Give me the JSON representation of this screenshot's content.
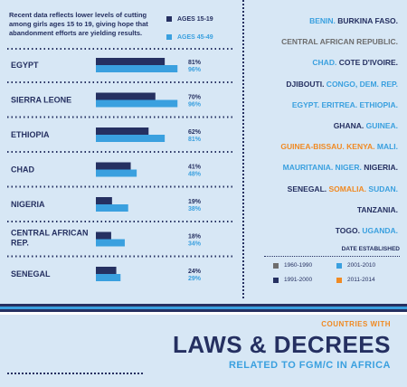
{
  "intro_text": "Recent data reflects lower levels of cutting among girls ages 15 to 19, giving hope that abandonment efforts are yielding results.",
  "age_legend": [
    {
      "label": "AGES 15-19",
      "color": "#253061"
    },
    {
      "label": "AGES 45-49",
      "color": "#3aa0df"
    }
  ],
  "chart_data": {
    "type": "bar",
    "orientation": "horizontal",
    "categories": [
      "EGYPT",
      "SIERRA LEONE",
      "ETHIOPIA",
      "CHAD",
      "NIGERIA",
      "CENTRAL AFRICAN REP.",
      "SENEGAL"
    ],
    "series": [
      {
        "name": "AGES 15-19",
        "color": "#253061",
        "values": [
          81,
          70,
          62,
          41,
          19,
          18,
          24
        ]
      },
      {
        "name": "AGES 45-49",
        "color": "#3aa0df",
        "values": [
          96,
          96,
          81,
          48,
          38,
          34,
          29
        ]
      }
    ],
    "value_labels": [
      [
        "81%",
        "96%"
      ],
      [
        "70%",
        "96%"
      ],
      [
        "62%",
        "81%"
      ],
      [
        "41%",
        "48%"
      ],
      [
        "19%",
        "38%"
      ],
      [
        "18%",
        "34%"
      ],
      [
        "24%",
        "29%"
      ]
    ],
    "xlim": [
      0,
      100
    ],
    "unit": "%"
  },
  "countries_list": [
    [
      {
        "text": "BENIN.",
        "color": "#3aa0df"
      },
      {
        "text": "BURKINA FASO.",
        "color": "#253061"
      }
    ],
    [
      {
        "text": "CENTRAL AFRICAN REPUBLIC.",
        "color": "#6d6d6d"
      }
    ],
    [
      {
        "text": "CHAD.",
        "color": "#3aa0df"
      },
      {
        "text": "COTE D'IVOIRE.",
        "color": "#253061"
      }
    ],
    [
      {
        "text": "DJIBOUTI.",
        "color": "#253061"
      },
      {
        "text": "CONGO, DEM. REP.",
        "color": "#3aa0df"
      }
    ],
    [
      {
        "text": "EGYPT. ERITREA. ETHIOPIA.",
        "color": "#3aa0df"
      }
    ],
    [
      {
        "text": "GHANA.",
        "color": "#253061"
      },
      {
        "text": "GUINEA.",
        "color": "#3aa0df"
      }
    ],
    [
      {
        "text": "GUINEA-BISSAU. KENYA.",
        "color": "#f08a23"
      },
      {
        "text": "MALI.",
        "color": "#3aa0df"
      }
    ],
    [
      {
        "text": "MAURITANIA. NIGER.",
        "color": "#3aa0df"
      },
      {
        "text": "NIGERIA.",
        "color": "#253061"
      }
    ],
    [
      {
        "text": "SENEGAL.",
        "color": "#253061"
      },
      {
        "text": "SOMALIA.",
        "color": "#f08a23"
      },
      {
        "text": "SUDAN.",
        "color": "#3aa0df"
      }
    ],
    [
      {
        "text": "TANZANIA.",
        "color": "#253061"
      }
    ],
    [
      {
        "text": "TOGO.",
        "color": "#253061"
      },
      {
        "text": "UGANDA.",
        "color": "#3aa0df"
      }
    ]
  ],
  "date_legend": {
    "title": "DATE ESTABLISHED",
    "items": [
      {
        "label": "1960-1990",
        "color": "#6d6d6d"
      },
      {
        "label": "2001-2010",
        "color": "#3aa0df"
      },
      {
        "label": "1991-2000",
        "color": "#253061"
      },
      {
        "label": "2011-2014",
        "color": "#f08a23"
      }
    ]
  },
  "banner": {
    "subtitle_top": "COUNTRIES WITH",
    "title": "LAWS & DECREES",
    "subtitle_bottom": "RELATED TO FGM/C IN AFRICA"
  },
  "stripe_colors": [
    "#253061",
    "#3aa0df",
    "#253061",
    "#ffffff"
  ],
  "colors": {
    "navy": "#253061",
    "blue": "#3aa0df",
    "orange": "#f08a23",
    "gray": "#6d6d6d"
  }
}
